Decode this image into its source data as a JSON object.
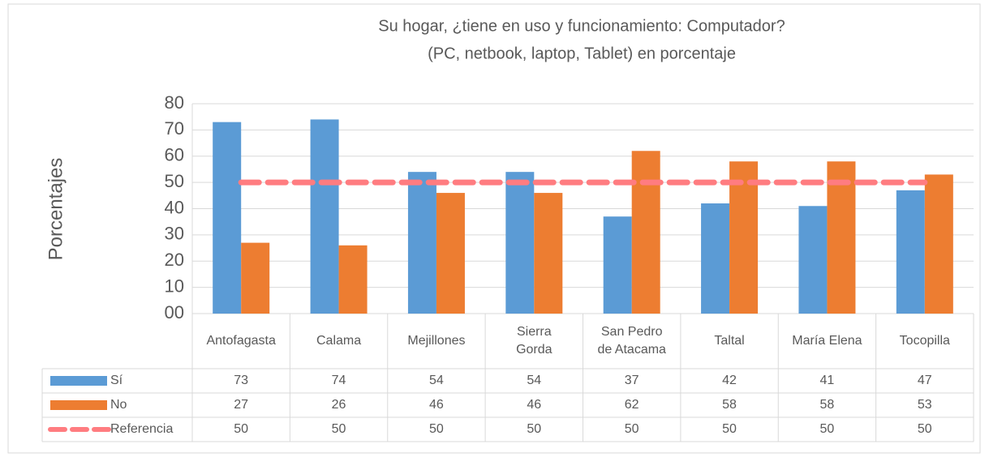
{
  "chart_data": {
    "type": "bar",
    "title": [
      "Su hogar, ¿tiene en uso y funcionamiento: Computador?",
      "(PC, netbook, laptop, Tablet) en porcentaje"
    ],
    "y_label": "Porcentajes",
    "categories": [
      [
        "Antofagasta"
      ],
      [
        "Calama"
      ],
      [
        "Mejillones"
      ],
      [
        "Sierra",
        "Gorda"
      ],
      [
        "San Pedro",
        "de Atacama"
      ],
      [
        "Taltal"
      ],
      [
        "María Elena"
      ],
      [
        "Tocopilla"
      ]
    ],
    "series": [
      {
        "name": "Sí",
        "color": "#5b9bd5",
        "type": "bar",
        "values": [
          73,
          74,
          54,
          54,
          37,
          42,
          41,
          47
        ]
      },
      {
        "name": "No",
        "color": "#ed7d31",
        "type": "bar",
        "values": [
          27,
          26,
          46,
          46,
          62,
          58,
          58,
          53
        ]
      },
      {
        "name": "Referencia",
        "color": "#ff7c80",
        "type": "line",
        "values": [
          50,
          50,
          50,
          50,
          50,
          50,
          50,
          50
        ]
      }
    ],
    "ylim": [
      0,
      80
    ],
    "yticks": [
      {
        "value": 0,
        "label": "00"
      },
      10,
      20,
      30,
      40,
      50,
      60,
      70,
      80
    ],
    "grid": true
  }
}
